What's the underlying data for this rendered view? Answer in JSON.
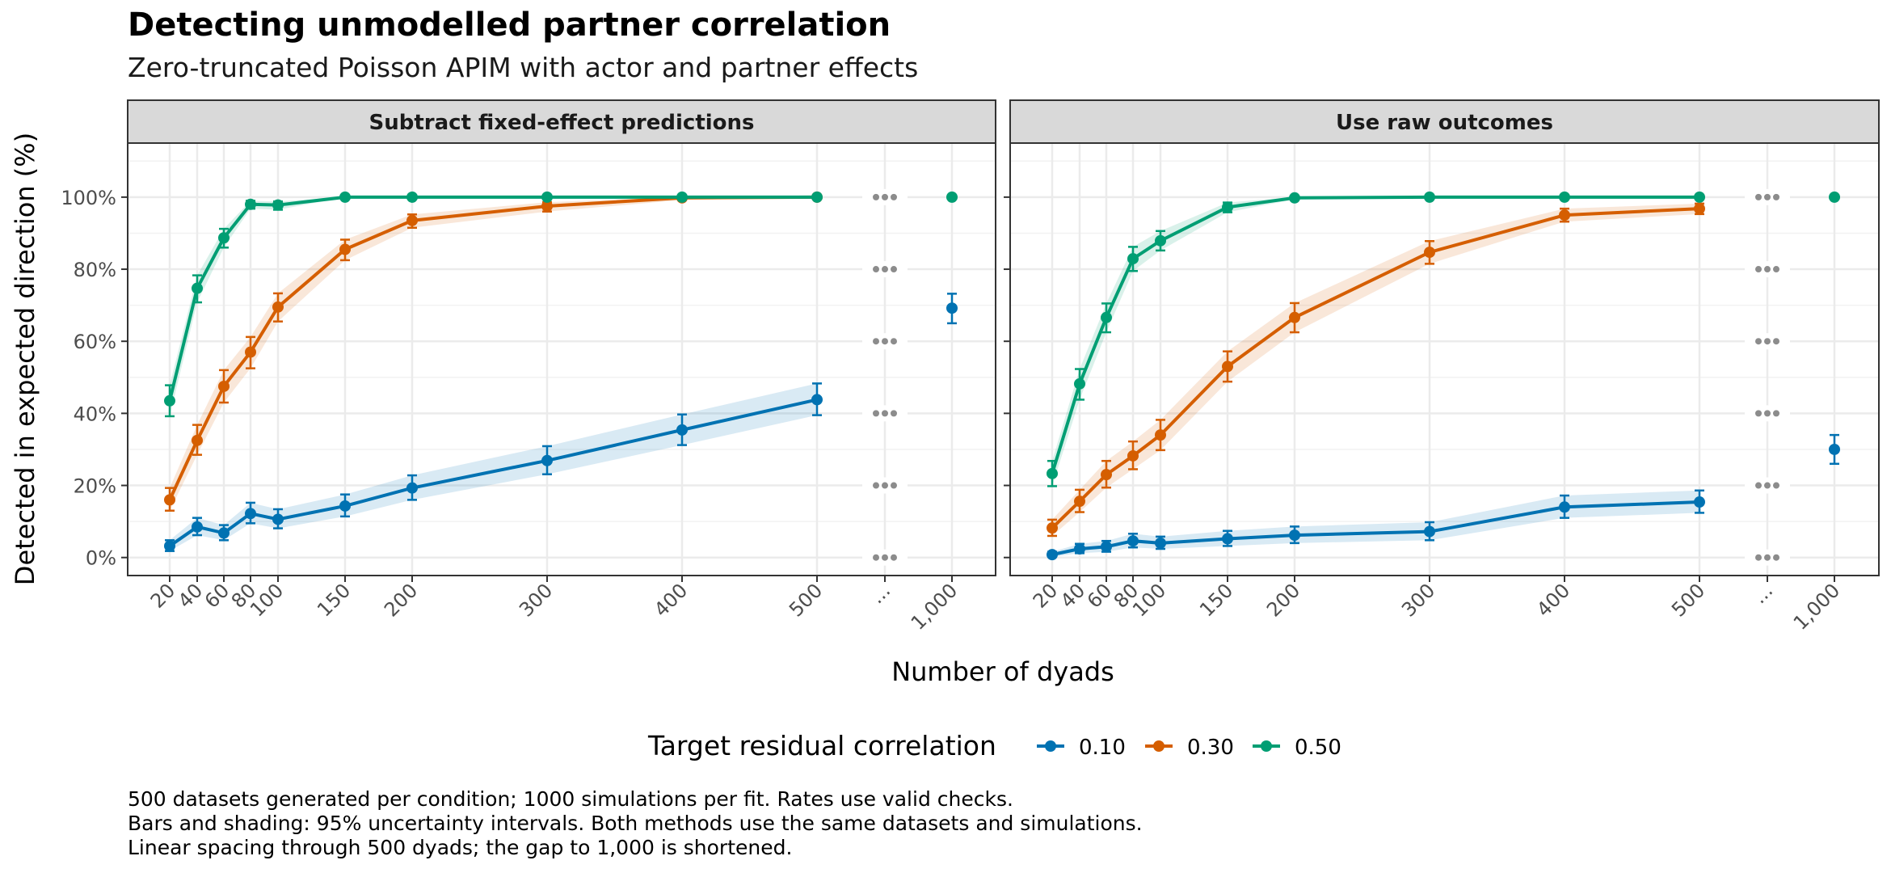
{
  "chart_data": {
    "type": "line",
    "title": "Detecting unmodelled partner correlation",
    "subtitle": "Zero-truncated Poisson APIM with actor and partner effects",
    "xlabel": "Number of dyads",
    "ylabel": "Detected in expected direction (%)",
    "x_ticks": [
      "20",
      "40",
      "60",
      "80",
      "100",
      "150",
      "200",
      "300",
      "400",
      "500",
      "...",
      "1,000"
    ],
    "x_break_label": "...",
    "y_ticks": [
      "0%",
      "20%",
      "40%",
      "60%",
      "80%",
      "100%"
    ],
    "ylim": [
      -5,
      115
    ],
    "grid": true,
    "legend": {
      "title": "Target residual correlation",
      "position": "bottom",
      "entries": [
        {
          "label": "0.10",
          "color": "#0072B2"
        },
        {
          "label": "0.30",
          "color": "#D55E00"
        },
        {
          "label": "0.50",
          "color": "#009E73"
        }
      ]
    },
    "panels": [
      {
        "title": "Subtract fixed-effect predictions",
        "series": [
          {
            "name": "0.10",
            "color": "#0072B2",
            "x": [
              20,
              40,
              60,
              80,
              100,
              150,
              200,
              300,
              400,
              500
            ],
            "y": [
              3.2,
              8.5,
              6.8,
              12.2,
              10.6,
              14.3,
              19.3,
              26.9,
              35.4,
              43.8
            ],
            "lo": [
              1.8,
              6.2,
              4.8,
              9.5,
              8.1,
              11.4,
              16.0,
              23.1,
              31.2,
              39.5
            ],
            "hi": [
              4.8,
              11.0,
              9.0,
              15.2,
              13.4,
              17.5,
              22.8,
              30.9,
              39.7,
              48.3
            ],
            "x_1000": 1000,
            "y_1000": 69.2,
            "lo_1000": 65.0,
            "hi_1000": 73.2
          },
          {
            "name": "0.30",
            "color": "#D55E00",
            "x": [
              20,
              40,
              60,
              80,
              100,
              150,
              200,
              300,
              400,
              500
            ],
            "y": [
              16.0,
              32.5,
              47.5,
              57.0,
              69.5,
              85.5,
              93.5,
              97.5,
              99.8,
              100.0
            ],
            "lo": [
              13.0,
              28.5,
              43.0,
              52.5,
              65.5,
              82.5,
              91.5,
              96.0,
              99.2,
              100.0
            ],
            "hi": [
              19.3,
              36.8,
              52.0,
              61.2,
              73.3,
              88.2,
              95.2,
              98.6,
              100.0,
              100.0
            ]
          },
          {
            "name": "0.50",
            "color": "#009E73",
            "x": [
              20,
              40,
              60,
              80,
              100,
              150,
              200,
              300,
              400,
              500
            ],
            "y": [
              43.5,
              74.7,
              88.7,
              98.0,
              97.8,
              100.0,
              100.0,
              100.0,
              100.0,
              100.0
            ],
            "lo": [
              39.2,
              70.8,
              86.0,
              96.8,
              96.5,
              100.0,
              100.0,
              100.0,
              100.0,
              100.0
            ],
            "hi": [
              47.8,
              78.3,
              91.2,
              99.0,
              98.8,
              100.0,
              100.0,
              100.0,
              100.0,
              100.0
            ],
            "x_1000": 1000,
            "y_1000": 100.0,
            "lo_1000": 99.6,
            "hi_1000": 100.0
          }
        ]
      },
      {
        "title": "Use raw outcomes",
        "series": [
          {
            "name": "0.10",
            "color": "#0072B2",
            "x": [
              20,
              40,
              60,
              80,
              100,
              150,
              200,
              300,
              400,
              500
            ],
            "y": [
              0.8,
              2.4,
              3.0,
              4.6,
              4.0,
              5.2,
              6.2,
              7.2,
              14.0,
              15.4
            ],
            "lo": [
              0.2,
              1.2,
              1.6,
              2.8,
              2.4,
              3.2,
              4.0,
              4.8,
              11.0,
              12.4
            ],
            "hi": [
              1.6,
              3.8,
              4.6,
              6.6,
              5.8,
              7.4,
              8.6,
              9.8,
              17.2,
              18.6
            ],
            "x_1000": 1000,
            "y_1000": 30.0,
            "lo_1000": 26.0,
            "hi_1000": 34.0
          },
          {
            "name": "0.30",
            "color": "#D55E00",
            "x": [
              20,
              40,
              60,
              80,
              100,
              150,
              200,
              300,
              400,
              500
            ],
            "y": [
              8.2,
              15.6,
              23.0,
              28.2,
              34.0,
              53.0,
              66.6,
              84.7,
              95.0,
              96.8
            ],
            "lo": [
              6.0,
              12.6,
              19.4,
              24.5,
              29.8,
              48.8,
              62.5,
              81.5,
              93.2,
              95.3
            ],
            "hi": [
              10.5,
              18.8,
              26.8,
              32.2,
              38.2,
              57.2,
              70.6,
              87.8,
              96.8,
              98.2
            ]
          },
          {
            "name": "0.50",
            "color": "#009E73",
            "x": [
              20,
              40,
              60,
              80,
              100,
              150,
              200,
              300,
              400,
              500
            ],
            "y": [
              23.3,
              48.2,
              66.6,
              82.9,
              87.9,
              97.2,
              99.8,
              100.0,
              100.0,
              100.0
            ],
            "lo": [
              19.8,
              43.8,
              62.5,
              79.5,
              85.2,
              95.8,
              99.4,
              100.0,
              100.0,
              100.0
            ],
            "hi": [
              26.8,
              52.3,
              70.5,
              86.2,
              90.6,
              98.5,
              100.0,
              100.0,
              100.0,
              100.0
            ],
            "x_1000": 1000,
            "y_1000": 100.0,
            "lo_1000": 99.6,
            "hi_1000": 100.0
          }
        ]
      }
    ]
  },
  "caption": {
    "line1": "500 datasets generated per condition; 1000 simulations per fit. Rates use valid checks.",
    "line2": "Bars and shading: 95% uncertainty intervals. Both methods use the same datasets and simulations.",
    "line3": "Linear spacing through 500 dyads; the gap to 1,000 is shortened."
  }
}
